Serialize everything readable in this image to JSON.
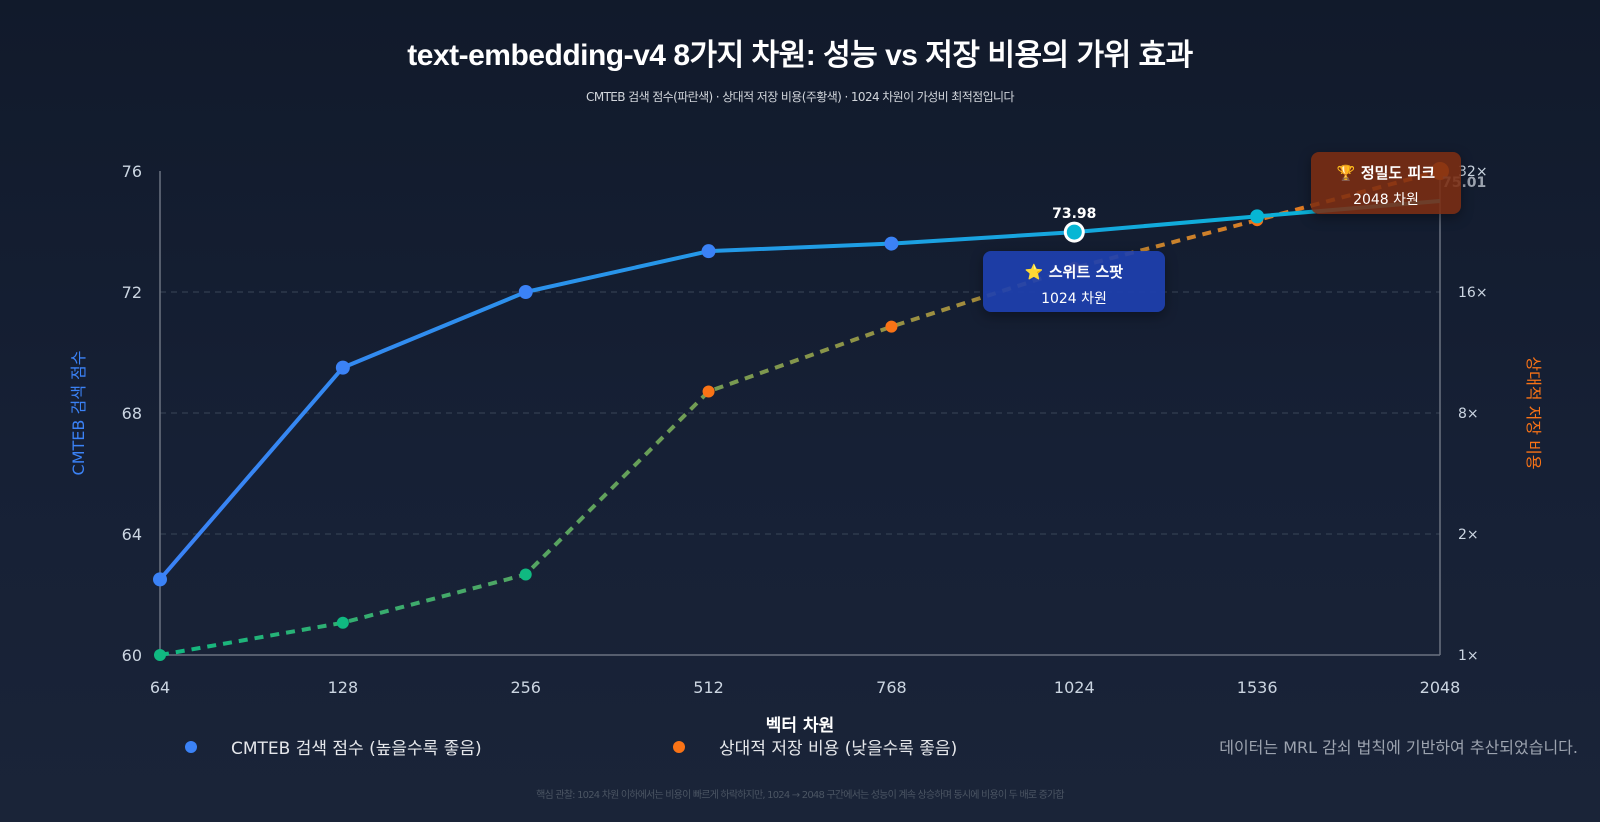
{
  "title": "text-embedding-v4 8가지 차원: 성능 vs 저장 비용의 가위 효과",
  "subtitle": "CMTEB 검색 점수(파란색) · 상대적 저장 비용(주황색) · 1024 차원이 가성비 최적점입니다",
  "footer": "핵심 관찰: 1024 차원 이하에서는 비용이 빠르게 하락하지만, 1024 → 2048 구간에서는 성능이 계속 상승하며 동시에 비용이 두 배로 증가합",
  "note": "데이터는 MRL 감쇠 법칙에 기반하여 추산되었습니다.",
  "colors": {
    "score_start": "#3b82f6",
    "score_end": "#06b6d4",
    "cost_start": "#10b981",
    "cost_end": "#f97316",
    "grid": "#3a4658",
    "axis": "#6b7280",
    "tick": "#cbd5e1",
    "left_label": "#3b82f6",
    "right_label": "#f97316"
  },
  "legend": [
    {
      "label": "CMTEB 검색 점수 (높을수록 좋음)",
      "color": "#3b82f6"
    },
    {
      "label": "상대적 저장 비용 (낮을수록 좋음)",
      "color": "#f97316"
    }
  ],
  "callouts": {
    "sweet": {
      "icon": "⭐",
      "title": "스위트 스팟",
      "sub": "1024 차원"
    },
    "peak": {
      "icon": "🏆",
      "title": "정밀도 피크",
      "sub": "2048 차원"
    }
  },
  "chart_data": {
    "type": "line",
    "xlabel": "벡터 차원",
    "ylabel": "CMTEB 검색 점수",
    "y2label": "상대적 저장 비용",
    "categories": [
      "64",
      "128",
      "256",
      "512",
      "768",
      "1024",
      "1536",
      "2048"
    ],
    "yticks": [
      60,
      64,
      68,
      72,
      76
    ],
    "ylim": [
      60,
      76
    ],
    "y2ticks": [
      "1×",
      "2×",
      "8×",
      "16×",
      "32×"
    ],
    "y2lim": [
      1,
      32
    ],
    "y2scale": "log",
    "grid": true,
    "series": [
      {
        "name": "CMTEB 검색 점수 (높을수록 좋음)",
        "axis": "left",
        "values": [
          62.5,
          69.5,
          72.0,
          73.35,
          73.6,
          73.98,
          74.5,
          75.01
        ]
      },
      {
        "name": "상대적 저장 비용 (낮을수록 좋음)",
        "axis": "right",
        "values": [
          1,
          1.26,
          1.78,
          6.6,
          10.5,
          16,
          22.5,
          32
        ]
      }
    ],
    "highlight": {
      "index": 5,
      "label": "73.98"
    },
    "end_label": "75.01"
  }
}
